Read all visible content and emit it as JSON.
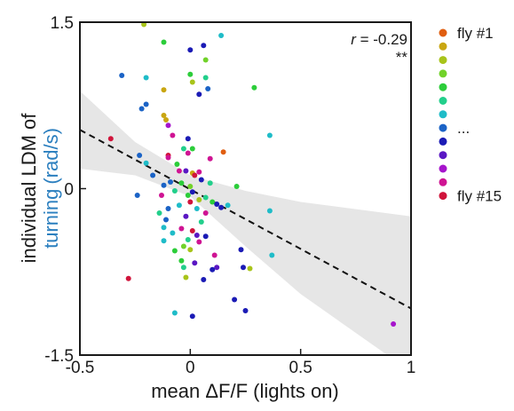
{
  "chart_data": {
    "type": "scatter",
    "title": "",
    "xlabel": "mean ΔF/F (lights on)",
    "ylabel_main": "individual LDM of",
    "ylabel_highlight": "turning",
    "ylabel_unit": "(rad/s)",
    "xlim": [
      -0.5,
      1.0
    ],
    "ylim": [
      -1.5,
      1.5
    ],
    "x_ticks": [
      {
        "value": -0.5,
        "label": "-0.5"
      },
      {
        "value": 0,
        "label": "0"
      },
      {
        "value": 0.5,
        "label": "0.5"
      },
      {
        "value": 1.0,
        "label": "1"
      }
    ],
    "y_ticks": [
      {
        "value": 1.5,
        "label": "1.5"
      },
      {
        "value": 0,
        "label": "0"
      },
      {
        "value": -1.5,
        "label": "-1.5"
      }
    ],
    "grid": false,
    "stats": {
      "r_symbol": "r",
      "r_text": " = -0.29",
      "significance": "**"
    },
    "fit_line": {
      "x": [
        -0.5,
        1.0
      ],
      "y": [
        0.53,
        -1.08
      ]
    },
    "confidence_band": {
      "x": [
        -0.5,
        -0.25,
        0.0,
        0.25,
        0.5,
        1.0
      ],
      "upper": [
        0.88,
        0.42,
        0.12,
        -0.02,
        -0.12,
        -0.25
      ],
      "lower": [
        0.18,
        0.12,
        -0.07,
        -0.52,
        -0.95,
        -1.65
      ]
    },
    "highlight_color": "#2b7fbf",
    "fit_color": "#111111",
    "band_color": "#e6e6e6",
    "legend": {
      "placement": "right",
      "colors": [
        "#e05e10",
        "#c9a612",
        "#a8c41a",
        "#71d22a",
        "#2ccd3a",
        "#22cf8b",
        "#1fbcc8",
        "#1b63c6",
        "#1b1bb5",
        "#5a17c3",
        "#a615cc",
        "#cf1493",
        "#d0143b"
      ],
      "labels": [
        {
          "row": 0,
          "text": "fly #1"
        },
        {
          "row": 7,
          "text": "..."
        },
        {
          "row": 12,
          "text": "fly #15"
        }
      ]
    },
    "points": [
      {
        "x": -0.21,
        "y": 1.48,
        "c": "#a8c41a"
      },
      {
        "x": -0.12,
        "y": 1.32,
        "c": "#2ccd3a"
      },
      {
        "x": 0.14,
        "y": 1.38,
        "c": "#1fbcc8"
      },
      {
        "x": 0.06,
        "y": 1.29,
        "c": "#1b1bb5"
      },
      {
        "x": 0.0,
        "y": 1.25,
        "c": "#1b1bb5"
      },
      {
        "x": 0.07,
        "y": 1.16,
        "c": "#71d22a"
      },
      {
        "x": -0.31,
        "y": 1.02,
        "c": "#1b63c6"
      },
      {
        "x": -0.2,
        "y": 1.0,
        "c": "#1fbcc8"
      },
      {
        "x": 0.0,
        "y": 1.03,
        "c": "#2ccd3a"
      },
      {
        "x": 0.01,
        "y": 0.96,
        "c": "#a8c41a"
      },
      {
        "x": 0.07,
        "y": 1.0,
        "c": "#22cf8b"
      },
      {
        "x": 0.08,
        "y": 0.9,
        "c": "#1b63c6"
      },
      {
        "x": 0.04,
        "y": 0.85,
        "c": "#1b1bb5"
      },
      {
        "x": -0.12,
        "y": 0.89,
        "c": "#c9a612"
      },
      {
        "x": 0.29,
        "y": 0.91,
        "c": "#2ccd3a"
      },
      {
        "x": -0.2,
        "y": 0.76,
        "c": "#1b63c6"
      },
      {
        "x": -0.22,
        "y": 0.72,
        "c": "#1b63c6"
      },
      {
        "x": -0.12,
        "y": 0.66,
        "c": "#c9a612"
      },
      {
        "x": -0.11,
        "y": 0.62,
        "c": "#c9a612"
      },
      {
        "x": -0.1,
        "y": 0.57,
        "c": "#a615cc"
      },
      {
        "x": -0.08,
        "y": 0.48,
        "c": "#cf1493"
      },
      {
        "x": 0.36,
        "y": 0.48,
        "c": "#1fbcc8"
      },
      {
        "x": -0.01,
        "y": 0.45,
        "c": "#1b1bb5"
      },
      {
        "x": -0.03,
        "y": 0.36,
        "c": "#22cf8b"
      },
      {
        "x": -0.01,
        "y": 0.32,
        "c": "#cf1493"
      },
      {
        "x": 0.01,
        "y": 0.36,
        "c": "#2ccd3a"
      },
      {
        "x": -0.36,
        "y": 0.45,
        "c": "#d0143b"
      },
      {
        "x": 0.15,
        "y": 0.33,
        "c": "#e05e10"
      },
      {
        "x": -0.23,
        "y": 0.3,
        "c": "#1b63c6"
      },
      {
        "x": -0.1,
        "y": 0.3,
        "c": "#d0143b"
      },
      {
        "x": -0.1,
        "y": 0.28,
        "c": "#cf1493"
      },
      {
        "x": 0.09,
        "y": 0.27,
        "c": "#cf1493"
      },
      {
        "x": -0.2,
        "y": 0.23,
        "c": "#1fbcc8"
      },
      {
        "x": -0.06,
        "y": 0.22,
        "c": "#2ccd3a"
      },
      {
        "x": -0.05,
        "y": 0.16,
        "c": "#cf1493"
      },
      {
        "x": -0.02,
        "y": 0.16,
        "c": "#5a17c3"
      },
      {
        "x": 0.04,
        "y": 0.15,
        "c": "#cf1493"
      },
      {
        "x": 0.01,
        "y": 0.14,
        "c": "#c9a612"
      },
      {
        "x": -0.17,
        "y": 0.12,
        "c": "#1b63c6"
      },
      {
        "x": 0.02,
        "y": 0.12,
        "c": "#d0143b"
      },
      {
        "x": 0.05,
        "y": 0.08,
        "c": "#1b1bb5"
      },
      {
        "x": -0.09,
        "y": 0.06,
        "c": "#1b63c6"
      },
      {
        "x": 0.09,
        "y": 0.05,
        "c": "#22cf8b"
      },
      {
        "x": -0.04,
        "y": 0.05,
        "c": "#2ccd3a"
      },
      {
        "x": 0.21,
        "y": 0.02,
        "c": "#2ccd3a"
      },
      {
        "x": -0.12,
        "y": 0.03,
        "c": "#1b63c6"
      },
      {
        "x": 0.0,
        "y": 0.02,
        "c": "#71d22a"
      },
      {
        "x": -0.07,
        "y": -0.02,
        "c": "#22cf8b"
      },
      {
        "x": 0.01,
        "y": -0.03,
        "c": "#1b1bb5"
      },
      {
        "x": -0.24,
        "y": -0.06,
        "c": "#1b63c6"
      },
      {
        "x": -0.13,
        "y": -0.06,
        "c": "#cf1493"
      },
      {
        "x": -0.01,
        "y": -0.06,
        "c": "#2ccd3a"
      },
      {
        "x": 0.07,
        "y": -0.08,
        "c": "#22cf8b"
      },
      {
        "x": 0.04,
        "y": -0.1,
        "c": "#a8c41a"
      },
      {
        "x": 0.0,
        "y": -0.12,
        "c": "#d0143b"
      },
      {
        "x": 0.1,
        "y": -0.12,
        "c": "#2ccd3a"
      },
      {
        "x": 0.12,
        "y": -0.14,
        "c": "#1b1bb5"
      },
      {
        "x": -0.05,
        "y": -0.15,
        "c": "#1fbcc8"
      },
      {
        "x": 0.17,
        "y": -0.15,
        "c": "#1fbcc8"
      },
      {
        "x": -0.1,
        "y": -0.18,
        "c": "#1b63c6"
      },
      {
        "x": 0.03,
        "y": -0.18,
        "c": "#1fbcc8"
      },
      {
        "x": 0.14,
        "y": -0.17,
        "c": "#1b1bb5"
      },
      {
        "x": -0.14,
        "y": -0.22,
        "c": "#22cf8b"
      },
      {
        "x": 0.07,
        "y": -0.22,
        "c": "#cf1493"
      },
      {
        "x": -0.02,
        "y": -0.25,
        "c": "#5a17c3"
      },
      {
        "x": 0.36,
        "y": -0.2,
        "c": "#1fbcc8"
      },
      {
        "x": -0.11,
        "y": -0.28,
        "c": "#1b63c6"
      },
      {
        "x": 0.05,
        "y": -0.3,
        "c": "#22cf8b"
      },
      {
        "x": -0.12,
        "y": -0.35,
        "c": "#1fbcc8"
      },
      {
        "x": -0.04,
        "y": -0.36,
        "c": "#cf1493"
      },
      {
        "x": 0.01,
        "y": -0.38,
        "c": "#d0143b"
      },
      {
        "x": -0.08,
        "y": -0.4,
        "c": "#1fbcc8"
      },
      {
        "x": 0.03,
        "y": -0.42,
        "c": "#5a17c3"
      },
      {
        "x": 0.07,
        "y": -0.43,
        "c": "#1b1bb5"
      },
      {
        "x": -0.01,
        "y": -0.46,
        "c": "#22cf8b"
      },
      {
        "x": -0.12,
        "y": -0.47,
        "c": "#1fbcc8"
      },
      {
        "x": 0.04,
        "y": -0.48,
        "c": "#cf1493"
      },
      {
        "x": -0.03,
        "y": -0.52,
        "c": "#71d22a"
      },
      {
        "x": 0.0,
        "y": -0.55,
        "c": "#a8c41a"
      },
      {
        "x": -0.07,
        "y": -0.56,
        "c": "#2ccd3a"
      },
      {
        "x": 0.23,
        "y": -0.55,
        "c": "#1b1bb5"
      },
      {
        "x": 0.11,
        "y": -0.6,
        "c": "#cf1493"
      },
      {
        "x": 0.37,
        "y": -0.6,
        "c": "#1fbcc8"
      },
      {
        "x": -0.04,
        "y": -0.65,
        "c": "#2ccd3a"
      },
      {
        "x": 0.02,
        "y": -0.67,
        "c": "#5a17c3"
      },
      {
        "x": -0.03,
        "y": -0.71,
        "c": "#22cf8b"
      },
      {
        "x": 0.12,
        "y": -0.71,
        "c": "#5a17c3"
      },
      {
        "x": 0.24,
        "y": -0.71,
        "c": "#1b1bb5"
      },
      {
        "x": 0.27,
        "y": -0.72,
        "c": "#a8c41a"
      },
      {
        "x": 0.1,
        "y": -0.73,
        "c": "#1b1bb5"
      },
      {
        "x": -0.02,
        "y": -0.8,
        "c": "#a8c41a"
      },
      {
        "x": 0.06,
        "y": -0.82,
        "c": "#1b1bb5"
      },
      {
        "x": -0.28,
        "y": -0.81,
        "c": "#d0143b"
      },
      {
        "x": 0.2,
        "y": -1.0,
        "c": "#1b1bb5"
      },
      {
        "x": -0.07,
        "y": -1.12,
        "c": "#1fbcc8"
      },
      {
        "x": 0.01,
        "y": -1.15,
        "c": "#1b1bb5"
      },
      {
        "x": 0.25,
        "y": -1.1,
        "c": "#1b1bb5"
      },
      {
        "x": 0.92,
        "y": -1.22,
        "c": "#a615cc"
      }
    ]
  }
}
